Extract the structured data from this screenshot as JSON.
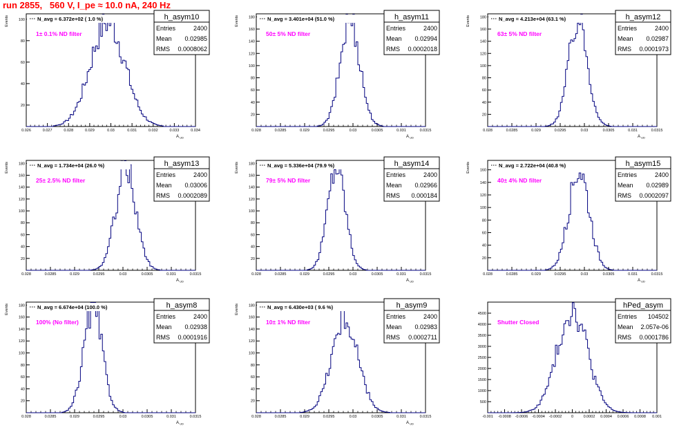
{
  "page": {
    "title": "run 2855,   560 V, I_pe ≈ 10.0 nA, 240 Hz"
  },
  "stats_labels": {
    "entries": "Entries",
    "mean": "Mean",
    "rms": "RMS"
  },
  "colors": {
    "histogram": "#00007f",
    "annotation": "#ff00ff",
    "title": "#ff0000",
    "axis": "#000000"
  },
  "chart_data": [
    {
      "type": "bar",
      "name": "h_asym10",
      "ylabel": "Events",
      "xlabel": "A_UD",
      "navg": "N_avg = 6.372e+02 ( 1.0 %)",
      "note": "1± 0.1% ND filter",
      "stats": {
        "entries": "2400",
        "mean": "0.02985",
        "rms": "0.0008062"
      },
      "xlim": [
        0.026,
        0.034
      ],
      "ylim": [
        0,
        105
      ],
      "xticks": [
        "0.026",
        "0.027",
        "0.028",
        "0.029",
        "0.03",
        "0.031",
        "0.032",
        "0.033",
        "0.034"
      ],
      "yticks": [
        "20",
        "40",
        "60",
        "80",
        "100"
      ],
      "mean": 0.02985,
      "rms": 0.0008062,
      "peak": 100,
      "bins": 100
    },
    {
      "type": "bar",
      "name": "h_asym11",
      "ylabel": "Events",
      "xlabel": "A_UD",
      "navg": "N_avg = 3.401e+04 (51.0 %)",
      "note": "50± 5% ND filter",
      "stats": {
        "entries": "2400",
        "mean": "0.02994",
        "rms": "0.0002018"
      },
      "xlim": [
        0.028,
        0.0315
      ],
      "ylim": [
        0,
        185
      ],
      "xticks": [
        "0.028",
        "0.0285",
        "0.029",
        "0.0295",
        "0.03",
        "0.0305",
        "0.031",
        "0.0315"
      ],
      "yticks": [
        "20",
        "40",
        "60",
        "80",
        "100",
        "120",
        "140",
        "160",
        "180"
      ],
      "mean": 0.02994,
      "rms": 0.0002018,
      "peak": 180,
      "bins": 100
    },
    {
      "type": "bar",
      "name": "h_asym12",
      "ylabel": "Events",
      "xlabel": "A_UD",
      "navg": "N_avg = 4.213e+04 (63.1 %)",
      "note": "63± 5% ND filter",
      "stats": {
        "entries": "2400",
        "mean": "0.02987",
        "rms": "0.0001973"
      },
      "xlim": [
        0.028,
        0.0315
      ],
      "ylim": [
        0,
        185
      ],
      "xticks": [
        "0.028",
        "0.0285",
        "0.029",
        "0.0295",
        "0.03",
        "0.0305",
        "0.031",
        "0.0315"
      ],
      "yticks": [
        "20",
        "40",
        "60",
        "80",
        "100",
        "120",
        "140",
        "160",
        "180"
      ],
      "mean": 0.02987,
      "rms": 0.0001973,
      "peak": 178,
      "bins": 100
    },
    {
      "type": "bar",
      "name": "h_asym13",
      "ylabel": "Events",
      "xlabel": "A_UD",
      "navg": "N_avg = 1.734e+04 (26.0 %)",
      "note": "25± 2.5% ND filter",
      "stats": {
        "entries": "2400",
        "mean": "0.03006",
        "rms": "0.0002089"
      },
      "xlim": [
        0.028,
        0.0315
      ],
      "ylim": [
        0,
        185
      ],
      "xticks": [
        "0.028",
        "0.0285",
        "0.029",
        "0.0295",
        "0.03",
        "0.0305",
        "0.031",
        "0.0315"
      ],
      "yticks": [
        "20",
        "40",
        "60",
        "80",
        "100",
        "120",
        "140",
        "160",
        "180"
      ],
      "mean": 0.03006,
      "rms": 0.0002089,
      "peak": 175,
      "bins": 100
    },
    {
      "type": "bar",
      "name": "h_asym14",
      "ylabel": "Events",
      "xlabel": "A_UD",
      "navg": "N_avg = 5.336e+04 (79.9 %)",
      "note": "79± 5% ND filter",
      "stats": {
        "entries": "2400",
        "mean": "0.02966",
        "rms": "0.000184"
      },
      "xlim": [
        0.028,
        0.0315
      ],
      "ylim": [
        0,
        185
      ],
      "xticks": [
        "0.028",
        "0.0285",
        "0.029",
        "0.0295",
        "0.03",
        "0.0305",
        "0.031",
        "0.0315"
      ],
      "yticks": [
        "20",
        "40",
        "60",
        "80",
        "100",
        "120",
        "140",
        "160",
        "180"
      ],
      "mean": 0.02966,
      "rms": 0.000184,
      "peak": 180,
      "bins": 100
    },
    {
      "type": "bar",
      "name": "h_asym15",
      "ylabel": "Events",
      "xlabel": "A_UD",
      "navg": "N_avg = 2.722e+04 (40.8 %)",
      "note": "40± 4% ND filter",
      "stats": {
        "entries": "2400",
        "mean": "0.02989",
        "rms": "0.0002097"
      },
      "xlim": [
        0.028,
        0.0315
      ],
      "ylim": [
        0,
        175
      ],
      "xticks": [
        "0.028",
        "0.0285",
        "0.029",
        "0.0295",
        "0.03",
        "0.0305",
        "0.031",
        "0.0315"
      ],
      "yticks": [
        "20",
        "40",
        "60",
        "80",
        "100",
        "120",
        "140",
        "160"
      ],
      "mean": 0.02989,
      "rms": 0.0002097,
      "peak": 165,
      "bins": 100
    },
    {
      "type": "bar",
      "name": "h_asym8",
      "ylabel": "Events",
      "xlabel": "A_UD",
      "navg": "N_avg = 6.674e+04 (100.0 %)",
      "note": "100% (No filter)",
      "stats": {
        "entries": "2400",
        "mean": "0.02938",
        "rms": "0.0001916"
      },
      "xlim": [
        0.028,
        0.0315
      ],
      "ylim": [
        0,
        185
      ],
      "xticks": [
        "0.028",
        "0.0285",
        "0.029",
        "0.0295",
        "0.03",
        "0.0305",
        "0.031",
        "0.0315"
      ],
      "yticks": [
        "20",
        "40",
        "60",
        "80",
        "100",
        "120",
        "140",
        "160",
        "180"
      ],
      "mean": 0.02938,
      "rms": 0.0001916,
      "peak": 178,
      "bins": 100
    },
    {
      "type": "bar",
      "name": "h_asym9",
      "ylabel": "Events",
      "xlabel": "A_UD",
      "navg": "N_avg = 6.430e+03 ( 9.6 %)",
      "note": "10± 1% ND filter",
      "stats": {
        "entries": "2400",
        "mean": "0.02983",
        "rms": "0.0002711"
      },
      "xlim": [
        0.028,
        0.0315
      ],
      "ylim": [
        0,
        185
      ],
      "xticks": [
        "0.028",
        "0.0285",
        "0.029",
        "0.0295",
        "0.03",
        "0.0305",
        "0.031",
        "0.0315"
      ],
      "yticks": [
        "20",
        "40",
        "60",
        "80",
        "100",
        "120",
        "140",
        "160",
        "180"
      ],
      "mean": 0.02983,
      "rms": 0.0002711,
      "peak": 160,
      "bins": 100
    },
    {
      "type": "bar",
      "name": "hPed_asym",
      "ylabel": "",
      "xlabel": "",
      "navg": "",
      "note": "Shutter Closed",
      "stats": {
        "entries": "104502",
        "mean": "2.057e-06",
        "rms": "0.0001786"
      },
      "xlim": [
        -0.001,
        0.001
      ],
      "ylim": [
        0,
        5000
      ],
      "xticks": [
        "-0.001",
        "-0.0008",
        "-0.0006",
        "-0.0004",
        "-0.0002",
        "0",
        "0.0002",
        "0.0004",
        "0.0006",
        "0.0008",
        "0.001"
      ],
      "yticks": [
        "500",
        "1000",
        "1500",
        "2000",
        "2500",
        "3000",
        "3500",
        "4000",
        "4500"
      ],
      "mean": 2.057e-06,
      "rms": 0.0001786,
      "peak": 4800,
      "bins": 100
    }
  ]
}
